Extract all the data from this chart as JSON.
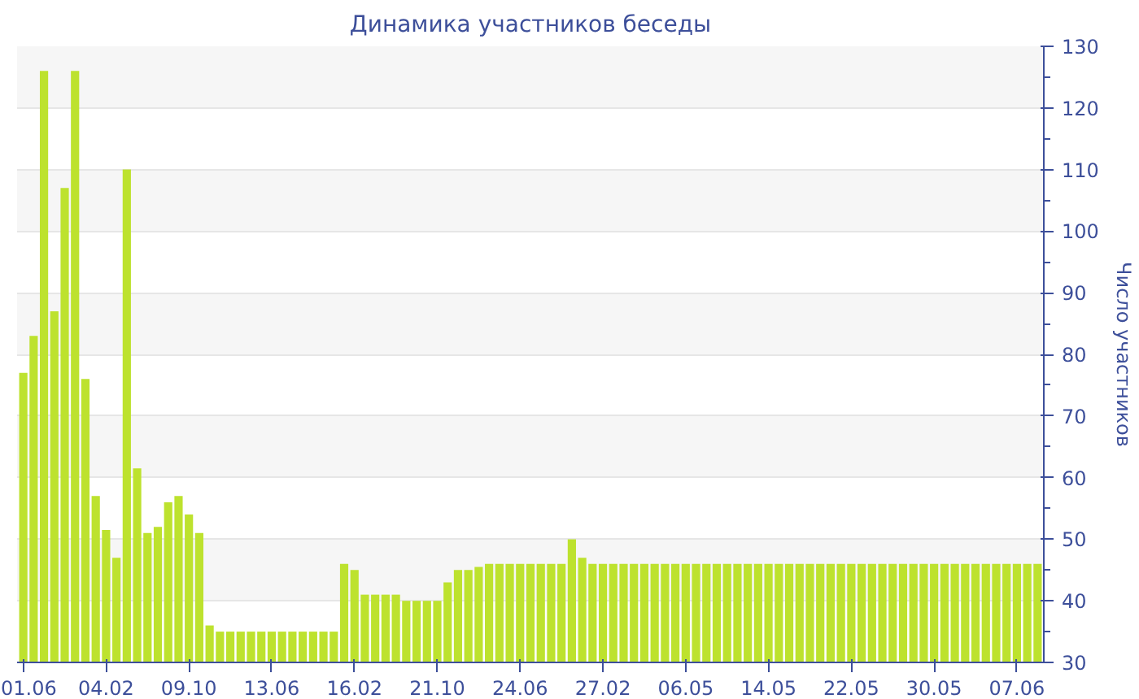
{
  "chart_data": {
    "type": "bar",
    "title": "Динамика участников беседы",
    "ylabel": "Число участников",
    "categories": [
      "01.06",
      null,
      null,
      null,
      null,
      null,
      null,
      null,
      "04.02",
      null,
      null,
      null,
      null,
      null,
      null,
      null,
      "09.10",
      null,
      null,
      null,
      null,
      null,
      null,
      null,
      "13.06",
      null,
      null,
      null,
      null,
      null,
      null,
      null,
      "16.02",
      null,
      null,
      null,
      null,
      null,
      null,
      null,
      "21.10",
      null,
      null,
      null,
      null,
      null,
      null,
      null,
      "24.06",
      null,
      null,
      null,
      null,
      null,
      null,
      null,
      "27.02",
      null,
      null,
      null,
      null,
      null,
      null,
      null,
      "06.05",
      null,
      null,
      null,
      null,
      null,
      null,
      null,
      "14.05",
      null,
      null,
      null,
      null,
      null,
      null,
      null,
      "22.05",
      null,
      null,
      null,
      null,
      null,
      null,
      null,
      "30.05",
      null,
      null,
      null,
      null,
      null,
      null,
      null,
      "07.06",
      null,
      null
    ],
    "values": [
      77,
      83,
      126,
      87,
      107,
      126,
      76,
      57,
      51.5,
      47,
      110,
      61.5,
      51,
      52,
      56,
      57,
      54,
      51,
      36,
      35,
      35,
      35,
      35,
      35,
      35,
      35,
      35,
      35,
      35,
      35,
      35,
      46,
      45,
      41,
      41,
      41,
      41,
      40,
      40,
      40,
      40,
      43,
      45,
      45,
      45.5,
      46,
      46,
      46,
      46,
      46,
      46,
      46,
      46,
      50,
      47,
      46,
      46,
      46,
      46,
      46,
      46,
      46,
      46,
      46,
      46,
      46,
      46,
      46,
      46,
      46,
      46,
      46,
      46,
      46,
      46,
      46,
      46,
      46,
      46,
      46,
      46,
      46,
      46,
      46,
      46,
      46,
      46,
      46,
      46,
      46,
      46,
      46,
      46,
      46,
      46,
      46,
      46,
      46,
      46
    ],
    "color": "#bde22e",
    "ylim": [
      30,
      130
    ],
    "yticks": [
      30,
      40,
      50,
      60,
      70,
      80,
      90,
      100,
      110,
      120,
      130
    ],
    "grid": "y"
  }
}
